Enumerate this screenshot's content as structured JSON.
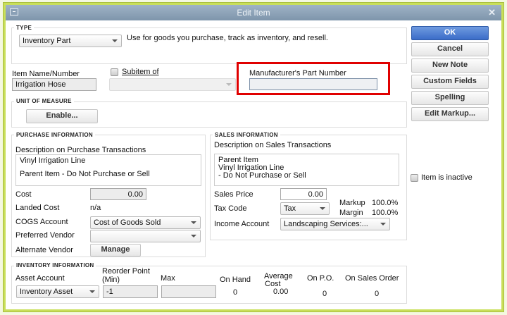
{
  "window": {
    "title": "Edit Item"
  },
  "type": {
    "legend": "TYPE",
    "value": "Inventory Part",
    "description": "Use for goods you purchase, track as inventory, and resell."
  },
  "item": {
    "name_label": "Item Name/Number",
    "name_value": "Irrigation Hose",
    "subitem_label": "Subitem of",
    "subitem_checked": false,
    "subitem_value": "",
    "mpn_label": "Manufacturer's Part Number",
    "mpn_value": ""
  },
  "highlight": {
    "color": "#e00000"
  },
  "uom": {
    "legend": "UNIT OF MEASURE",
    "enable_label": "Enable..."
  },
  "purchase": {
    "legend": "PURCHASE INFORMATION",
    "desc_label": "Description on Purchase Transactions",
    "desc_line1": "Vinyl Irrigation Line",
    "desc_line2": "Parent Item - Do Not Purchase or Sell",
    "cost_label": "Cost",
    "cost_value": "0.00",
    "landed_label": "Landed Cost",
    "landed_value": "n/a",
    "cogs_label": "COGS Account",
    "cogs_value": "Cost of Goods Sold",
    "vendor_label": "Preferred Vendor",
    "vendor_value": "",
    "alt_vendor_label": "Alternate Vendor",
    "manage_label": "Manage"
  },
  "sales": {
    "legend": "SALES INFORMATION",
    "desc_label": "Description on Sales Transactions",
    "desc_line1": "Parent Item",
    "desc_line2": "Vinyl Irrigation Line",
    "desc_line3": "- Do Not Purchase or Sell",
    "price_label": "Sales Price",
    "price_value": "0.00",
    "tax_label": "Tax Code",
    "tax_value": "Tax",
    "markup_label": "Markup",
    "markup_value": "100.0%",
    "margin_label": "Margin",
    "margin_value": "100.0%",
    "income_label": "Income Account",
    "income_value": "Landscaping Services:..."
  },
  "inventory": {
    "legend": "INVENTORY INFORMATION",
    "asset_label": "Asset Account",
    "asset_value": "Inventory Asset",
    "reorder_label1": "Reorder Point",
    "reorder_label2": "(Min)",
    "reorder_value": "-1",
    "max_label": "Max",
    "max_value": "",
    "onhand_label": "On Hand",
    "onhand_value": "0",
    "avg_label1": "Average",
    "avg_label2": "Cost",
    "avg_value": "0.00",
    "onpo_label": "On P.O.",
    "onpo_value": "0",
    "onso_label": "On Sales Order",
    "onso_value": "0"
  },
  "buttons": {
    "ok": "OK",
    "cancel": "Cancel",
    "new_note": "New Note",
    "custom_fields": "Custom Fields",
    "spelling": "Spelling",
    "edit_markup": "Edit Markup..."
  },
  "inactive": {
    "label": "Item is inactive",
    "checked": false
  }
}
